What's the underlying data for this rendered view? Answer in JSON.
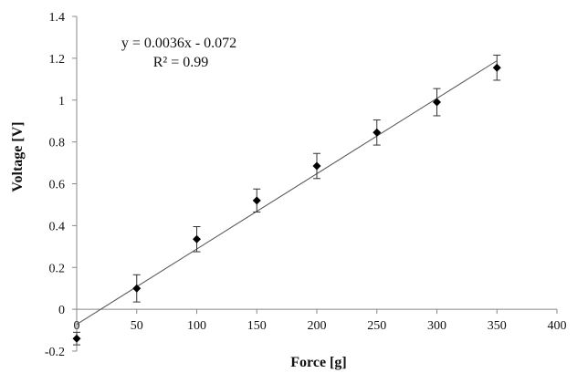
{
  "chart_data": {
    "type": "scatter",
    "title": "",
    "xlabel": "Force [g]",
    "ylabel": "Voltage [V]",
    "xlim": [
      0,
      400
    ],
    "ylim": [
      -0.2,
      1.4
    ],
    "xticks": [
      0,
      50,
      100,
      150,
      200,
      250,
      300,
      350,
      400
    ],
    "yticks": [
      -0.2,
      0,
      0.2,
      0.4,
      0.6,
      0.8,
      1,
      1.2,
      1.4
    ],
    "ytick_labels": [
      "-0.2",
      "0",
      "0.2",
      "0.4",
      "0.6",
      "0.8",
      "1",
      "1.2",
      "1.4"
    ],
    "grid": false,
    "legend": "none",
    "series": [
      {
        "marker": "diamond",
        "color": "#000000",
        "x": [
          0,
          50,
          100,
          150,
          200,
          250,
          300,
          350
        ],
        "y": [
          -0.14,
          0.1,
          0.335,
          0.52,
          0.685,
          0.845,
          0.99,
          1.155
        ],
        "error": [
          0.03,
          0.065,
          0.06,
          0.055,
          0.06,
          0.06,
          0.065,
          0.06
        ]
      }
    ],
    "trendline": {
      "type": "linear",
      "slope": 0.0036,
      "intercept": -0.072,
      "x_range": [
        0,
        350
      ],
      "color": "#555555"
    },
    "annotations": {
      "equation": "y = 0.0036x - 0.072",
      "r_squared": "R² = 0.99"
    }
  }
}
